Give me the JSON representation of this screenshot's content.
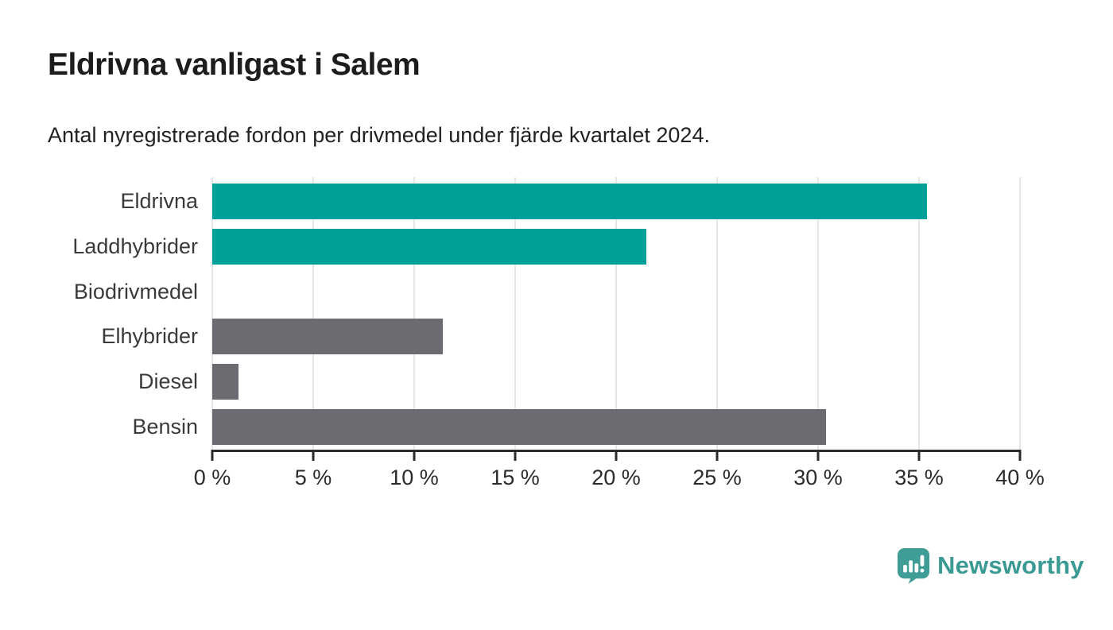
{
  "header": {
    "title": "Eldrivna vanligast i Salem",
    "subtitle": "Antal nyregistrerade fordon per drivmedel under fjärde kvartalet 2024."
  },
  "colors": {
    "highlight_teal": "#00a09a",
    "neutral_gray": "#6d6b72",
    "gridline": "#e6e6e6",
    "axis": "#2b2b2b",
    "brand_teal": "#3b9a93"
  },
  "chart_data": {
    "type": "bar",
    "orientation": "horizontal",
    "title": "Eldrivna vanligast i Salem",
    "subtitle": "Antal nyregistrerade fordon per drivmedel under fjärde kvartalet 2024.",
    "categories": [
      "Eldrivna",
      "Laddhybrider",
      "Biodrivmedel",
      "Elhybrider",
      "Diesel",
      "Bensin"
    ],
    "values": [
      35.4,
      21.5,
      0,
      11.4,
      1.3,
      30.4
    ],
    "unit": "%",
    "bar_colors": [
      "#00a09a",
      "#00a09a",
      "#00a09a",
      "#6d6b72",
      "#6d6b72",
      "#6d6b72"
    ],
    "xlim": [
      0,
      40
    ],
    "x_ticks": [
      0,
      5,
      10,
      15,
      20,
      25,
      30,
      35,
      40
    ],
    "x_tick_labels": [
      "0 %",
      "5 %",
      "10 %",
      "15 %",
      "20 %",
      "25 %",
      "30 %",
      "35 %",
      "40 %"
    ],
    "xlabel": "",
    "ylabel": "",
    "grid": "vertical",
    "legend": "none"
  },
  "branding": {
    "name": "Newsworthy",
    "icon": "newsworthy-bar-chart-bubble-icon"
  }
}
